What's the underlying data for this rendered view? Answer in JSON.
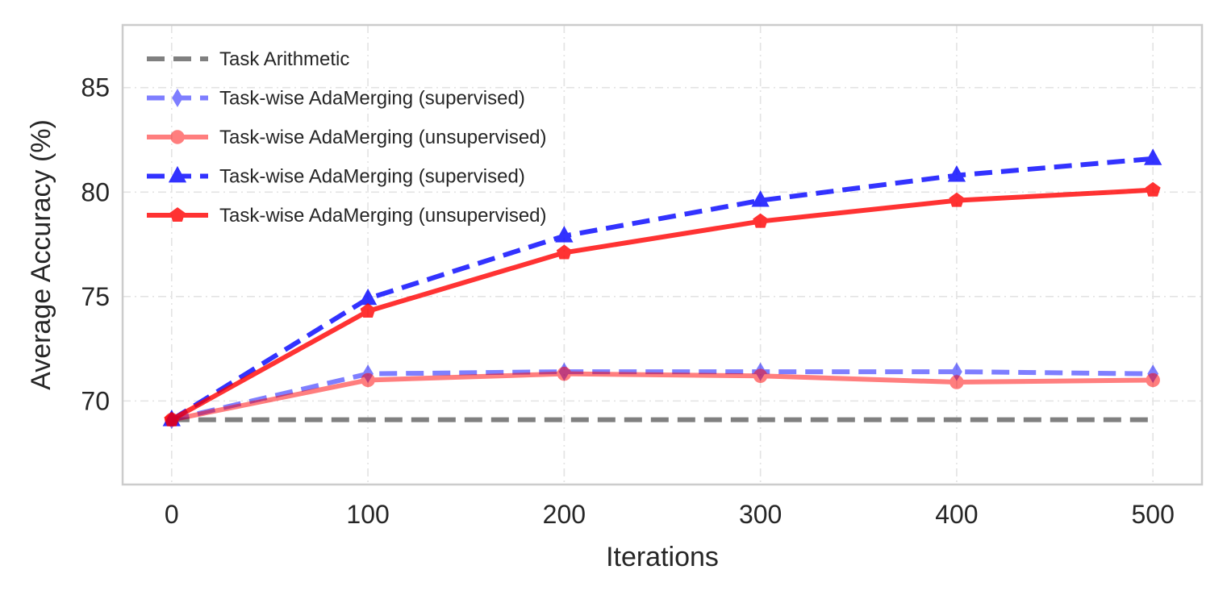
{
  "chart_data": {
    "type": "line",
    "title": "",
    "xlabel": "Iterations",
    "ylabel": "Average Accuracy (%)",
    "x": [
      0,
      100,
      200,
      300,
      400,
      500
    ],
    "xlim": [
      -25,
      525
    ],
    "ylim": [
      66,
      88
    ],
    "xticks": [
      0,
      100,
      200,
      300,
      400,
      500
    ],
    "yticks": [
      70,
      75,
      80,
      85
    ],
    "grid": true,
    "legend_position": "top-left",
    "series": [
      {
        "name": "Task Arithmetic",
        "values": [
          69.1,
          69.1,
          69.1,
          69.1,
          69.1,
          69.1
        ],
        "color": "#808080",
        "line_style": "dashed",
        "marker": "none",
        "opacity": 1.0
      },
      {
        "name": "Task-wise AdaMerging (supervised)",
        "values": [
          69.1,
          71.3,
          71.4,
          71.4,
          71.4,
          71.3
        ],
        "color": "#0000ff",
        "line_style": "dashed",
        "marker": "thin-diamond",
        "opacity": 0.5
      },
      {
        "name": "Task-wise AdaMerging (unsupervised)",
        "values": [
          69.1,
          71.0,
          71.3,
          71.2,
          70.9,
          71.0
        ],
        "color": "#ff0000",
        "line_style": "solid",
        "marker": "circle",
        "opacity": 0.5
      },
      {
        "name": "Task-wise AdaMerging (supervised)",
        "values": [
          69.1,
          74.9,
          77.9,
          79.6,
          80.8,
          81.6
        ],
        "color": "#0000ff",
        "line_style": "dashed",
        "marker": "triangle",
        "opacity": 0.8
      },
      {
        "name": "Task-wise AdaMerging (unsupervised)",
        "values": [
          69.1,
          74.3,
          77.1,
          78.6,
          79.6,
          80.1
        ],
        "color": "#ff0000",
        "line_style": "solid",
        "marker": "pentagon",
        "opacity": 0.8
      }
    ]
  }
}
